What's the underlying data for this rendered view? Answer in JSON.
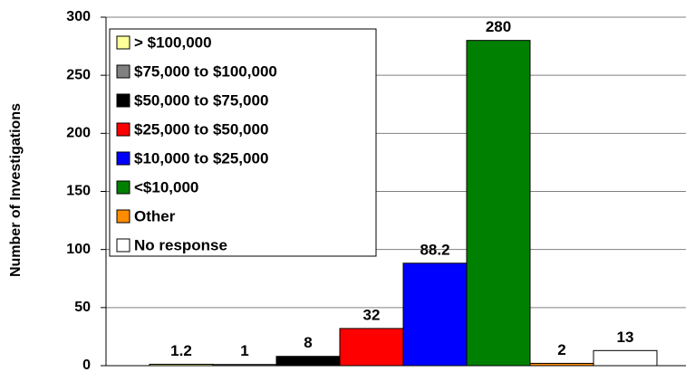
{
  "chart_data": {
    "type": "bar",
    "ylabel": "Number of Investigations",
    "ylim": [
      0,
      300
    ],
    "yticks": [
      0,
      50,
      100,
      150,
      200,
      250,
      300
    ],
    "grid": true,
    "series": [
      {
        "name": "> $100,000",
        "color": "#ffff99",
        "values": [
          1.2
        ]
      },
      {
        "name": "$75,000 to $100,000",
        "color": "#808080",
        "values": [
          1
        ]
      },
      {
        "name": "$50,000 to $75,000",
        "color": "#000000",
        "values": [
          8
        ]
      },
      {
        "name": "$25,000 to $50,000",
        "color": "#ff0000",
        "values": [
          32
        ]
      },
      {
        "name": "$10,000 to $25,000",
        "color": "#0000ff",
        "values": [
          88.2
        ]
      },
      {
        "name": "<$10,000",
        "color": "#008000",
        "values": [
          280
        ]
      },
      {
        "name": "Other",
        "color": "#ff8c00",
        "values": [
          2
        ]
      },
      {
        "name": "No response",
        "color": "#ffffff",
        "values": [
          13
        ]
      }
    ]
  }
}
